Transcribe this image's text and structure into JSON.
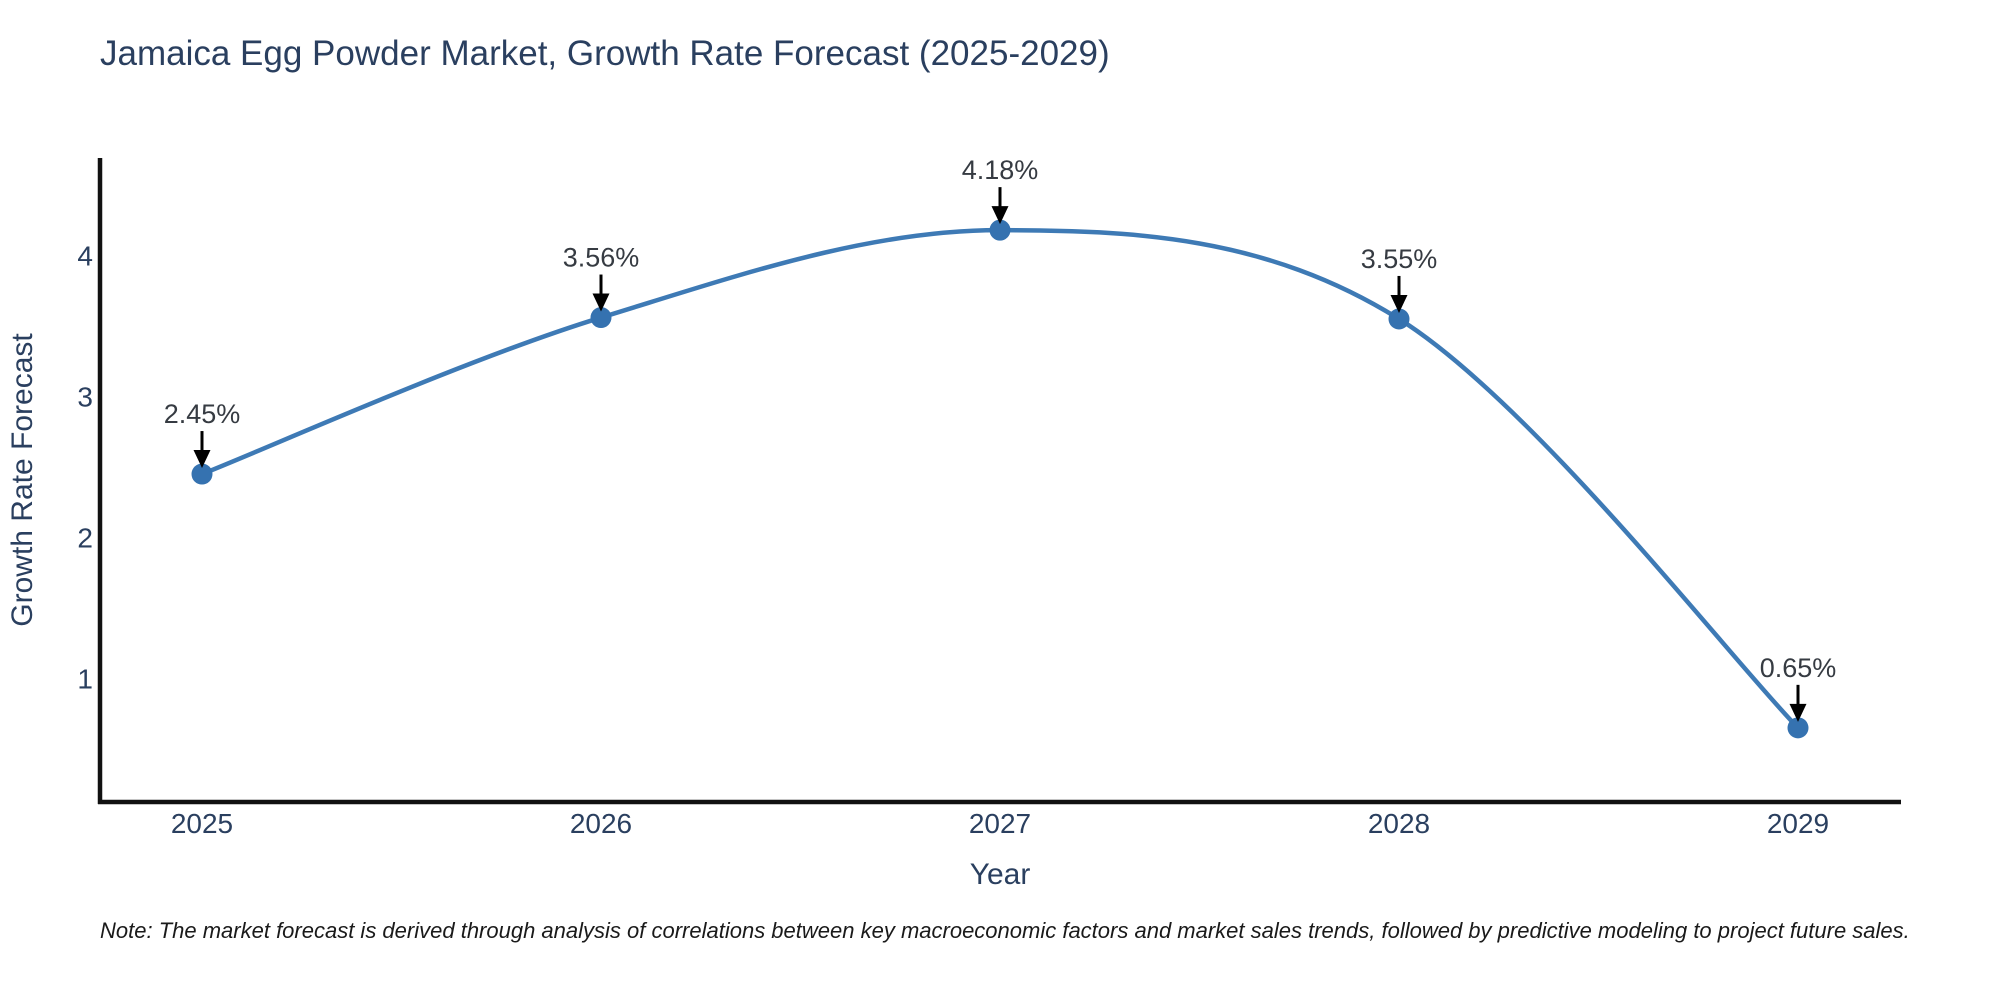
{
  "title": "Jamaica Egg Powder Market, Growth Rate Forecast (2025-2029)",
  "note": "Note: The market forecast is derived through analysis of correlations between key macroeconomic factors and market sales trends, followed by predictive modeling to project future sales.",
  "chart_data": {
    "type": "line",
    "title": "Jamaica Egg Powder Market, Growth Rate Forecast (2025-2029)",
    "x": [
      2025,
      2026,
      2027,
      2028,
      2029
    ],
    "x_labels": [
      "2025",
      "2026",
      "2027",
      "2028",
      "2029"
    ],
    "values": [
      2.45,
      3.56,
      4.18,
      3.55,
      0.65
    ],
    "point_labels": [
      "2.45%",
      "3.56%",
      "4.18%",
      "3.55%",
      "0.65%"
    ],
    "xlabel": "Year",
    "ylabel": "Growth Rate Forecast",
    "yticks": [
      1,
      2,
      3,
      4
    ],
    "ylim": [
      0.12,
      4.68
    ],
    "xlim": [
      2024.74,
      2029.26
    ],
    "grid": false,
    "legend": "none",
    "line_shape": "spline",
    "line_color": "#3e7ab5",
    "marker_color": "#3572b0",
    "annotation_arrow_color": "#000000",
    "axis_color": "#111111",
    "text_color": "#2a3f5f"
  }
}
